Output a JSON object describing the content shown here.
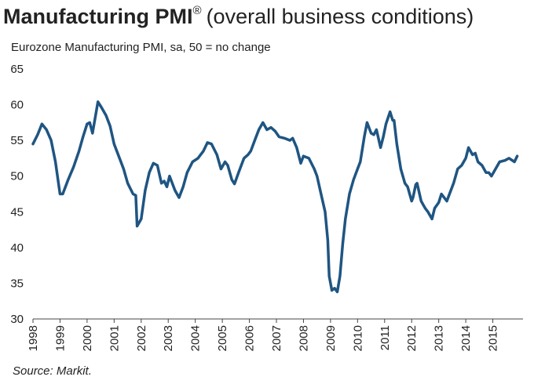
{
  "chart_data": {
    "type": "line",
    "title": "Manufacturing PMI",
    "title_mark": "®",
    "title_suffix": "(overall business conditions)",
    "subtitle": "Eurozone Manufacturing PMI, sa, 50 = no change",
    "source": "Source: Markit.",
    "color": "#1f5582",
    "x": [
      1998.0,
      1998.17,
      1998.33,
      1998.5,
      1998.67,
      1998.83,
      1999.0,
      1999.1,
      1999.3,
      1999.5,
      1999.7,
      1999.85,
      2000.0,
      2000.1,
      2000.2,
      2000.4,
      2000.55,
      2000.7,
      2000.85,
      2001.0,
      2001.2,
      2001.35,
      2001.5,
      2001.7,
      2001.8,
      2001.85,
      2002.0,
      2002.15,
      2002.3,
      2002.45,
      2002.6,
      2002.75,
      2002.85,
      2002.95,
      2003.05,
      2003.25,
      2003.4,
      2003.55,
      2003.7,
      2003.9,
      2004.1,
      2004.3,
      2004.45,
      2004.6,
      2004.8,
      2004.95,
      2005.1,
      2005.2,
      2005.35,
      2005.45,
      2005.6,
      2005.8,
      2005.95,
      2006.05,
      2006.2,
      2006.35,
      2006.5,
      2006.65,
      2006.8,
      2006.95,
      2007.1,
      2007.3,
      2007.5,
      2007.6,
      2007.75,
      2007.9,
      2008.0,
      2008.2,
      2008.4,
      2008.5,
      2008.65,
      2008.8,
      2008.9,
      2008.95,
      2009.05,
      2009.15,
      2009.25,
      2009.35,
      2009.45,
      2009.55,
      2009.7,
      2009.85,
      2010.0,
      2010.1,
      2010.25,
      2010.35,
      2010.5,
      2010.6,
      2010.7,
      2010.85,
      2010.95,
      2011.05,
      2011.2,
      2011.3,
      2011.35,
      2011.45,
      2011.6,
      2011.75,
      2011.85,
      2012.0,
      2012.05,
      2012.15,
      2012.2,
      2012.35,
      2012.5,
      2012.6,
      2012.75,
      2012.85,
      2013.0,
      2013.1,
      2013.3,
      2013.4,
      2013.55,
      2013.7,
      2013.85,
      2014.0,
      2014.1,
      2014.25,
      2014.35,
      2014.45,
      2014.6,
      2014.75,
      2014.85,
      2014.95,
      2015.1,
      2015.25,
      2015.45,
      2015.6,
      2015.8,
      2015.9
    ],
    "values": [
      54.5,
      55.8,
      57.3,
      56.5,
      55,
      52,
      47.5,
      47.5,
      49.5,
      51.3,
      53.5,
      55.5,
      57.3,
      57.5,
      56,
      60.4,
      59.5,
      58.5,
      57,
      54.5,
      52.5,
      51,
      49,
      47.5,
      47.3,
      43,
      44,
      48,
      50.5,
      51.8,
      51.5,
      49,
      49.3,
      48.5,
      50,
      48,
      47,
      48.5,
      50.5,
      52,
      52.5,
      53.5,
      54.7,
      54.5,
      53,
      51,
      52,
      51.5,
      49.5,
      48.9,
      50.5,
      52.5,
      53,
      53.5,
      55,
      56.5,
      57.5,
      56.5,
      56.8,
      56.3,
      55.5,
      55.3,
      55,
      55.3,
      54,
      51.8,
      52.8,
      52.5,
      51,
      50,
      47.5,
      45,
      41,
      36,
      34,
      34.3,
      33.8,
      36,
      40.5,
      44,
      47.5,
      49.5,
      51,
      52,
      55.5,
      57.5,
      56,
      55.8,
      56.5,
      54,
      55.5,
      57.3,
      59,
      57.8,
      57.8,
      54.5,
      51,
      49,
      48.5,
      46.5,
      47,
      48.8,
      49,
      46.5,
      45.5,
      45,
      44,
      45.5,
      46.3,
      47.5,
      46.5,
      47.5,
      49,
      51,
      51.5,
      52.5,
      54,
      53,
      53.2,
      52,
      51.5,
      50.5,
      50.5,
      50,
      51,
      52,
      52.2,
      52.5,
      52,
      52.8
    ],
    "xlim": [
      1998,
      2016
    ],
    "xticks": [
      1998,
      1999,
      2000,
      2001,
      2002,
      2003,
      2004,
      2005,
      2006,
      2007,
      2008,
      2009,
      2010,
      2011,
      2012,
      2013,
      2014,
      2015
    ],
    "ylim": [
      30,
      65
    ],
    "yticks": [
      30,
      35,
      40,
      45,
      50,
      55,
      60,
      65
    ],
    "grid": false
  }
}
